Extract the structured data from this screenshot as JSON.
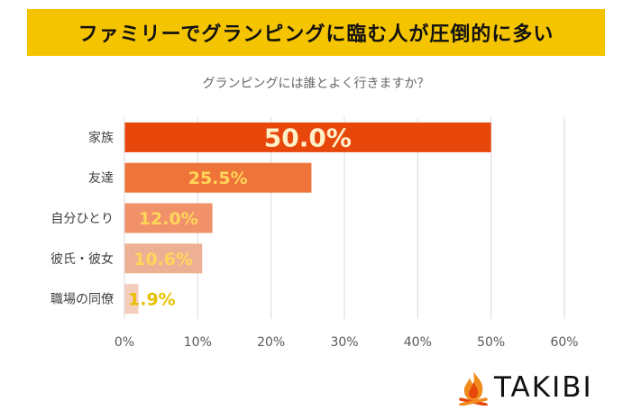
{
  "banner": {
    "title": "ファミリーでグランピングに臨む人が圧倒的に多い"
  },
  "chart_data": {
    "type": "bar",
    "orientation": "horizontal",
    "title": "グランピングには誰とよく行きますか？",
    "categories": [
      "家族",
      "友達",
      "自分ひとり",
      "彼氏・彼女",
      "職場の同僚"
    ],
    "values": [
      50.0,
      25.5,
      12.0,
      10.6,
      1.9
    ],
    "value_labels": [
      "50.0%",
      "25.5%",
      "12.0%",
      "10.6%",
      "1.9%"
    ],
    "bar_colors": [
      "#e8470c",
      "#ef7439",
      "#f1916a",
      "#eeb094",
      "#f4cdbd"
    ],
    "label_colors": [
      "#fff0c8",
      "#ffd65a",
      "#ffd65a",
      "#ffd65a",
      "#e8c000"
    ],
    "xlim": [
      0,
      60
    ],
    "xticks": [
      0,
      10,
      20,
      30,
      40,
      50,
      60
    ],
    "xtick_labels": [
      "0%",
      "10%",
      "20%",
      "30%",
      "40%",
      "50%",
      "60%"
    ],
    "grid": true,
    "xlabel": "",
    "ylabel": ""
  },
  "logo": {
    "text": "TAKIBI"
  }
}
